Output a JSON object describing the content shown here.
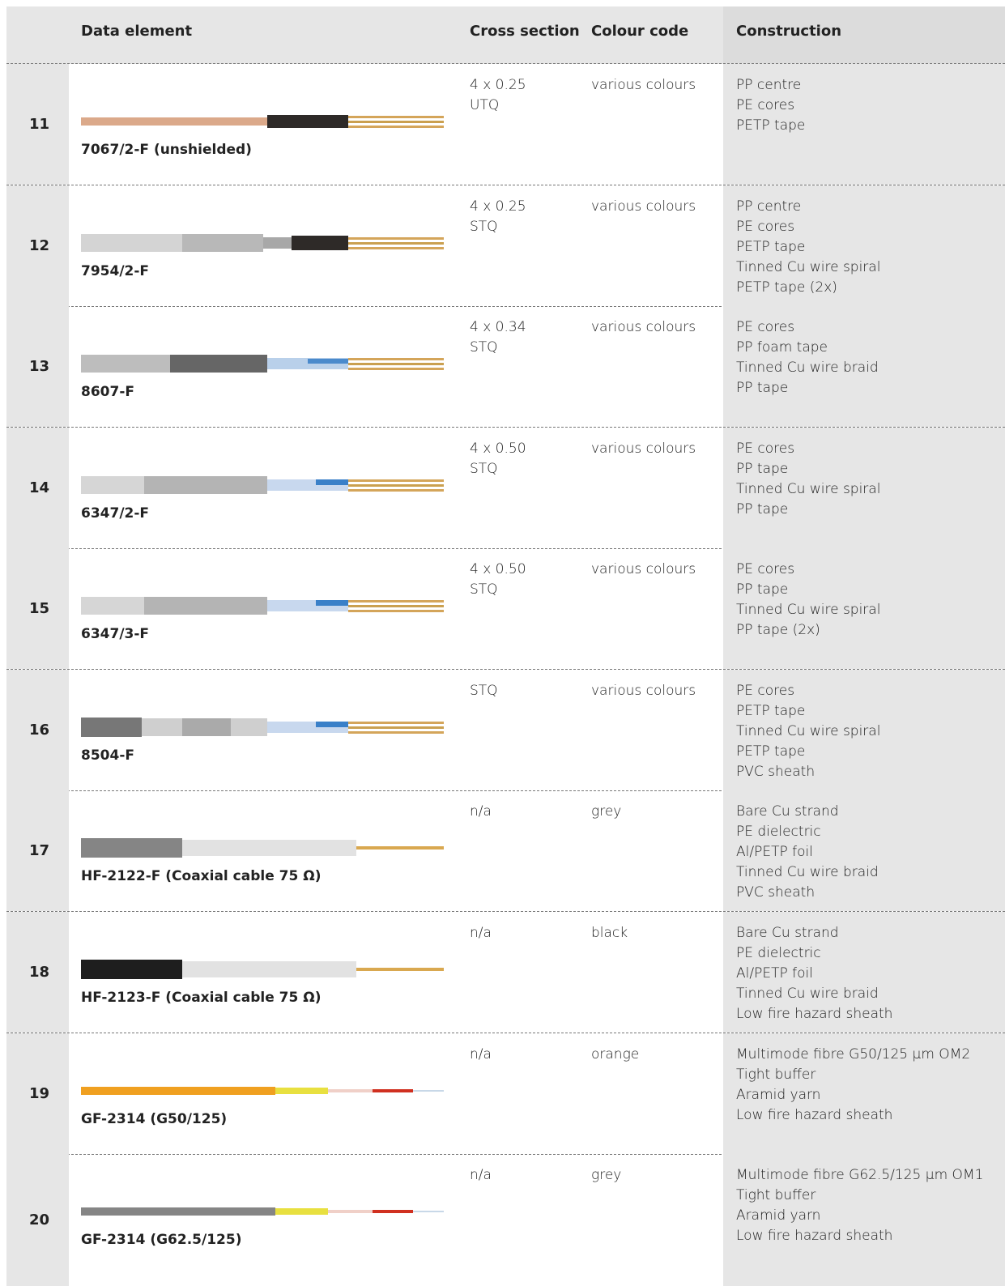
{
  "header": {
    "data_element": "Data element",
    "cross_section": "Cross section",
    "colour_code": "Colour code",
    "construction": "Construction"
  },
  "rows": [
    {
      "number": "11",
      "name": "7067/2-F (unshielded)",
      "cross_section": [
        "4 x 0.25",
        "UTQ"
      ],
      "colour_code": "various colours",
      "construction": [
        "PP centre",
        "PE cores",
        "PETP tape"
      ]
    },
    {
      "number": "12",
      "name": "7954/2-F",
      "cross_section": [
        "4 x 0.25",
        "STQ"
      ],
      "colour_code": "various colours",
      "construction": [
        "PP centre",
        "PE cores",
        "PETP tape",
        "Tinned Cu wire spiral",
        "PETP tape (2x)"
      ]
    },
    {
      "number": "13",
      "name": "8607-F",
      "cross_section": [
        "4 x 0.34",
        "STQ"
      ],
      "colour_code": "various colours",
      "construction": [
        "PE cores",
        "PP foam tape",
        "Tinned Cu wire braid",
        "PP tape"
      ]
    },
    {
      "number": "14",
      "name": "6347/2-F",
      "cross_section": [
        "4 x 0.50",
        "STQ"
      ],
      "colour_code": "various colours",
      "construction": [
        "PE cores",
        "PP tape",
        "Tinned Cu wire spiral",
        "PP tape"
      ]
    },
    {
      "number": "15",
      "name": "6347/3-F",
      "cross_section": [
        "4 x 0.50",
        "STQ"
      ],
      "colour_code": "various colours",
      "construction": [
        "PE cores",
        "PP tape",
        "Tinned Cu wire spiral",
        "PP tape (2x)"
      ]
    },
    {
      "number": "16",
      "name": "8504-F",
      "cross_section": [
        "STQ"
      ],
      "colour_code": "various colours",
      "construction": [
        "PE cores",
        "PETP tape",
        "Tinned Cu wire spiral",
        "PETP tape",
        "PVC sheath"
      ]
    },
    {
      "number": "17",
      "name": "HF-2122-F (Coaxial cable 75 Ω)",
      "cross_section": [
        "n/a"
      ],
      "colour_code": "grey",
      "construction": [
        "Bare Cu strand",
        "PE dielectric",
        "Al/PETP foil",
        "Tinned Cu wire braid",
        "PVC sheath"
      ]
    },
    {
      "number": "18",
      "name": "HF-2123-F (Coaxial cable 75 Ω)",
      "cross_section": [
        "n/a"
      ],
      "colour_code": "black",
      "construction": [
        "Bare Cu strand",
        "PE dielectric",
        "Al/PETP foil",
        "Tinned Cu wire braid",
        "Low fire hazard sheath"
      ]
    },
    {
      "number": "19",
      "name": "GF-2314 (G50/125)",
      "cross_section": [
        "n/a"
      ],
      "colour_code": "orange",
      "construction": [
        "Multimode fibre G50/125 µm OM2",
        "Tight buffer",
        "Aramid yarn",
        "Low fire hazard sheath"
      ]
    },
    {
      "number": "20",
      "name": "GF-2314 (G62.5/125)",
      "cross_section": [
        "n/a"
      ],
      "colour_code": "grey",
      "construction": [
        "Multimode fibre G62.5/125 µm OM1",
        "Tight buffer",
        "Aramid yarn",
        "Low fire hazard sheath"
      ]
    }
  ]
}
